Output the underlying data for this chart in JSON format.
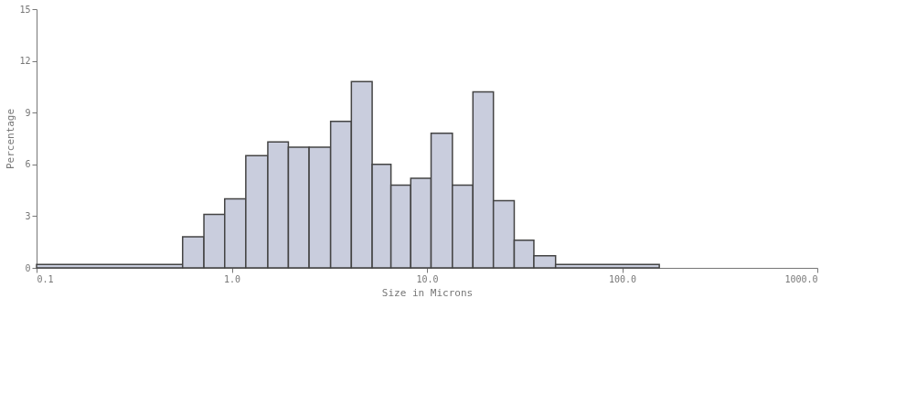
{
  "chart_data": {
    "type": "histogram",
    "xlabel": "Size in Microns",
    "ylabel": "Percentage",
    "log": "x",
    "grid": false,
    "color": "#c9cddd",
    "bins": [
      0.1,
      0.56,
      0.72,
      0.92,
      1.18,
      1.53,
      1.95,
      2.49,
      3.21,
      4.1,
      5.24,
      6.54,
      8.26,
      10.5,
      13.5,
      17.2,
      21.9,
      28.0,
      35.3,
      45.6,
      155
    ],
    "values": [
      0.2,
      1.8,
      3.1,
      4.0,
      6.5,
      7.3,
      7.0,
      7.0,
      8.5,
      10.8,
      6.0,
      4.8,
      5.2,
      7.8,
      4.8,
      10.2,
      3.9,
      1.6,
      0.7,
      0.2
    ],
    "xlim": [
      0.1,
      1000
    ],
    "xticks": [
      {
        "value": 0.1,
        "label": "0.1"
      },
      {
        "value": 1,
        "label": "1.0"
      },
      {
        "value": 10,
        "label": "10.0"
      },
      {
        "value": 100,
        "label": "100.0"
      },
      {
        "value": 1000,
        "label": "1000.0"
      }
    ],
    "ylim": [
      0,
      15
    ],
    "yticks": [
      0,
      3,
      6,
      9,
      12,
      15
    ]
  }
}
